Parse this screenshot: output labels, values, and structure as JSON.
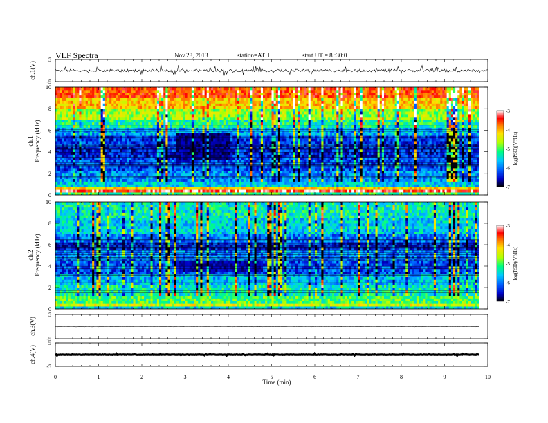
{
  "header": {
    "title": "VLF  Spectra",
    "date": "Nov.28, 2013",
    "station": "station=ATH",
    "start": "start  UT  =   8  :30:0"
  },
  "colors": {
    "colormap": [
      "#000000",
      "#0000c8",
      "#0060ff",
      "#00c8ff",
      "#00ff80",
      "#b4ff00",
      "#ffe000",
      "#ff8000",
      "#ff0000",
      "#ffffff"
    ]
  },
  "chart_data": [
    {
      "type": "line",
      "id": "ch1-waveform",
      "ylabel": "ch.1(V)",
      "ylim": [
        -5,
        5
      ],
      "y_ticks": [
        "5",
        "-5"
      ],
      "xlim": [
        0,
        10
      ],
      "trace_level_volts": 0,
      "spike_amplitude_volts": 2
    },
    {
      "type": "heatmap",
      "id": "ch1-spectrogram",
      "channel_label": "ch.1",
      "ylabel": "Frequency  (kHz)",
      "ylim": [
        0,
        10
      ],
      "y_ticks": [
        "0",
        "2",
        "4",
        "6",
        "8",
        "10"
      ],
      "xlim": [
        0,
        9.8
      ],
      "colorbar": {
        "label": "log(PSD)(V²/Hz)",
        "range": [
          -7,
          -3
        ],
        "ticks": [
          "-3",
          "-4",
          "-5",
          "-6",
          "-7"
        ]
      },
      "bands": [
        {
          "f_from": 0,
          "f_to": 0.3,
          "log_psd": -5.2
        },
        {
          "f_from": 0.3,
          "f_to": 0.5,
          "log_psd": -3.3
        },
        {
          "f_from": 0.5,
          "f_to": 0.7,
          "log_psd": -4.3
        },
        {
          "f_from": 0.7,
          "f_to": 1.3,
          "log_psd": -5.6
        },
        {
          "f_from": 1.3,
          "f_to": 2.2,
          "log_psd": -5.9
        },
        {
          "f_from": 2.2,
          "f_to": 3.5,
          "log_psd": -6.2
        },
        {
          "f_from": 3.5,
          "f_to": 4.5,
          "log_psd": -6.4
        },
        {
          "f_from": 4.5,
          "f_to": 5.5,
          "log_psd": -6.3
        },
        {
          "f_from": 5.5,
          "f_to": 6.2,
          "log_psd": -5.8
        },
        {
          "f_from": 6.2,
          "f_to": 7.0,
          "log_psd": -5.3
        },
        {
          "f_from": 7.0,
          "f_to": 8.0,
          "log_psd": -4.8
        },
        {
          "f_from": 8.0,
          "f_to": 9.0,
          "log_psd": -4.2
        },
        {
          "f_from": 9.0,
          "f_to": 10.0,
          "log_psd": -3.7
        }
      ],
      "quiet_patch": {
        "t_from": 2.8,
        "t_to": 4.0,
        "f_from": 3.2,
        "f_to": 5.8,
        "log_psd": -6.7
      }
    },
    {
      "type": "heatmap",
      "id": "ch2-spectrogram",
      "channel_label": "ch.2",
      "ylabel": "Frequency  (kHz)",
      "ylim": [
        0,
        10
      ],
      "y_ticks": [
        "0",
        "2",
        "4",
        "6",
        "8",
        "10"
      ],
      "xlim": [
        0,
        9.8
      ],
      "colorbar": {
        "label": "log(PSD)(V²/Hz)",
        "range": [
          -7,
          -3
        ],
        "ticks": [
          "-3",
          "-4",
          "-5",
          "-6",
          "-7"
        ]
      },
      "bands": [
        {
          "f_from": 0,
          "f_to": 0.3,
          "log_psd": -5.6
        },
        {
          "f_from": 0.3,
          "f_to": 0.6,
          "log_psd": -4.6
        },
        {
          "f_from": 0.6,
          "f_to": 1.2,
          "log_psd": -5.1
        },
        {
          "f_from": 1.2,
          "f_to": 2.2,
          "log_psd": -5.4
        },
        {
          "f_from": 2.2,
          "f_to": 3.2,
          "log_psd": -5.7
        },
        {
          "f_from": 3.2,
          "f_to": 4.6,
          "log_psd": -6.2
        },
        {
          "f_from": 4.6,
          "f_to": 5.4,
          "log_psd": -6.0
        },
        {
          "f_from": 5.4,
          "f_to": 6.2,
          "log_psd": -6.4
        },
        {
          "f_from": 6.2,
          "f_to": 7.0,
          "log_psd": -6.0
        },
        {
          "f_from": 7.0,
          "f_to": 8.5,
          "log_psd": -5.6
        },
        {
          "f_from": 8.5,
          "f_to": 10.0,
          "log_psd": -5.4
        }
      ],
      "quiet_patch": {
        "t_from": 2.8,
        "t_to": 4.8,
        "f_from": 3.6,
        "f_to": 4.6,
        "log_psd": -6.6
      }
    },
    {
      "type": "line",
      "id": "ch3-waveform",
      "ylabel": "ch.3(V)",
      "ylim": [
        -5,
        5
      ],
      "y_ticks": [
        "5",
        "-5"
      ],
      "xlim": [
        0,
        9.8
      ],
      "trace_level_volts": 0,
      "spike_amplitude_volts": 0.1
    },
    {
      "type": "line",
      "id": "ch4-waveform",
      "ylabel": "ch.4(V)",
      "ylim": [
        -5,
        5
      ],
      "y_ticks": [
        "5",
        "-5"
      ],
      "xlim": [
        0,
        9.8
      ],
      "trace_level_volts": 0,
      "spike_amplitude_volts": 0.3
    }
  ],
  "time_axis": {
    "label": "Time  (min)",
    "range": [
      0,
      10
    ],
    "ticks": [
      "0",
      "1",
      "2",
      "3",
      "4",
      "5",
      "6",
      "7",
      "8",
      "9",
      "10"
    ]
  }
}
